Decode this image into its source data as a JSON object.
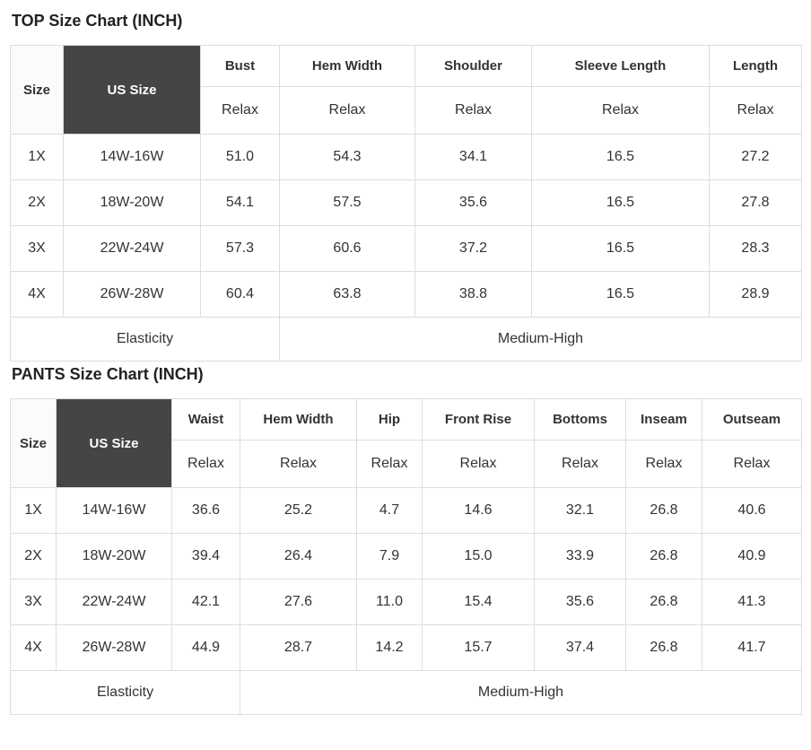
{
  "colors": {
    "header_dark_bg": "#454545",
    "header_dark_text": "#ffffff",
    "border": "#dddddd",
    "text": "#333333",
    "title_text": "#222222",
    "page_bg": "#ffffff"
  },
  "tables": [
    {
      "title": "TOP Size Chart (INCH)",
      "unit": "INCH",
      "corner": {
        "size": "Size",
        "us_size": "US Size"
      },
      "measures": [
        "Bust",
        "Hem Width",
        "Shoulder",
        "Sleeve Length",
        "Length"
      ],
      "fit": [
        "Relax",
        "Relax",
        "Relax",
        "Relax",
        "Relax"
      ],
      "rows": [
        {
          "size": "1X",
          "us_size": "14W-16W",
          "values": [
            "51.0",
            "54.3",
            "34.1",
            "16.5",
            "27.2"
          ]
        },
        {
          "size": "2X",
          "us_size": "18W-20W",
          "values": [
            "54.1",
            "57.5",
            "35.6",
            "16.5",
            "27.8"
          ]
        },
        {
          "size": "3X",
          "us_size": "22W-24W",
          "values": [
            "57.3",
            "60.6",
            "37.2",
            "16.5",
            "28.3"
          ]
        },
        {
          "size": "4X",
          "us_size": "26W-28W",
          "values": [
            "60.4",
            "63.8",
            "38.8",
            "16.5",
            "28.9"
          ]
        }
      ],
      "footer": {
        "label": "Elasticity",
        "value": "Medium-High"
      }
    },
    {
      "title": "PANTS Size Chart (INCH)",
      "unit": "INCH",
      "corner": {
        "size": "Size",
        "us_size": "US Size"
      },
      "measures": [
        "Waist",
        "Hem Width",
        "Hip",
        "Front Rise",
        "Bottoms",
        "Inseam",
        "Outseam"
      ],
      "fit": [
        "Relax",
        "Relax",
        "Relax",
        "Relax",
        "Relax",
        "Relax",
        "Relax"
      ],
      "rows": [
        {
          "size": "1X",
          "us_size": "14W-16W",
          "values": [
            "36.6",
            "25.2",
            "4.7",
            "14.6",
            "32.1",
            "26.8",
            "40.6"
          ]
        },
        {
          "size": "2X",
          "us_size": "18W-20W",
          "values": [
            "39.4",
            "26.4",
            "7.9",
            "15.0",
            "33.9",
            "26.8",
            "40.9"
          ]
        },
        {
          "size": "3X",
          "us_size": "22W-24W",
          "values": [
            "42.1",
            "27.6",
            "11.0",
            "15.4",
            "35.6",
            "26.8",
            "41.3"
          ]
        },
        {
          "size": "4X",
          "us_size": "26W-28W",
          "values": [
            "44.9",
            "28.7",
            "14.2",
            "15.7",
            "37.4",
            "26.8",
            "41.7"
          ]
        }
      ],
      "footer": {
        "label": "Elasticity",
        "value": "Medium-High"
      }
    }
  ]
}
